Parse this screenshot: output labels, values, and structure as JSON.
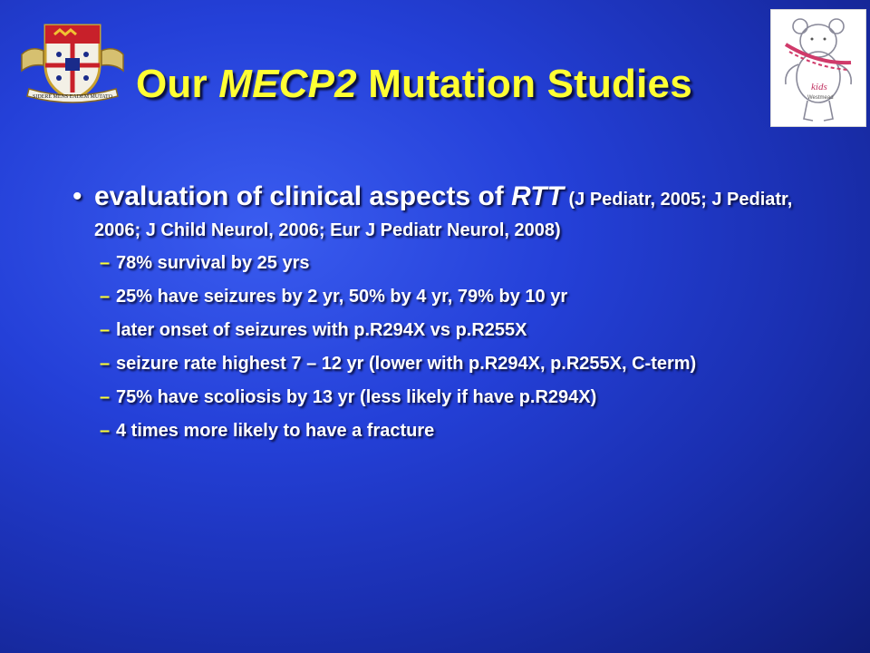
{
  "slide": {
    "title_prefix": "Our ",
    "title_italic": "MECP2",
    "title_suffix": " Mutation Studies",
    "crest_motto": "SIDERE MENS EADEM MUTATO",
    "kids_logo_text": "kids",
    "kids_logo_subtext": "Westmead",
    "bullet": {
      "symbol": "•",
      "text_main": "evaluation of  clinical aspects of ",
      "text_italic": "RTT",
      "text_ref": " (J Pediatr, 2005; J Pediatr, 2006; J Child Neurol, 2006; Eur J Pediatr Neurol, 2008)"
    },
    "sub_symbol": "–",
    "sub_items": [
      "78% survival by 25 yrs",
      "25% have seizures by 2 yr, 50% by 4 yr, 79% by 10 yr",
      "later onset of seizures with p.R294X vs p.R255X",
      "seizure rate highest 7 – 12 yr (lower with p.R294X, p.R255X, C-term)",
      "75% have scoliosis by 13 yr (less likely if have p.R294X)",
      "4 times more likely to have a fracture"
    ]
  }
}
